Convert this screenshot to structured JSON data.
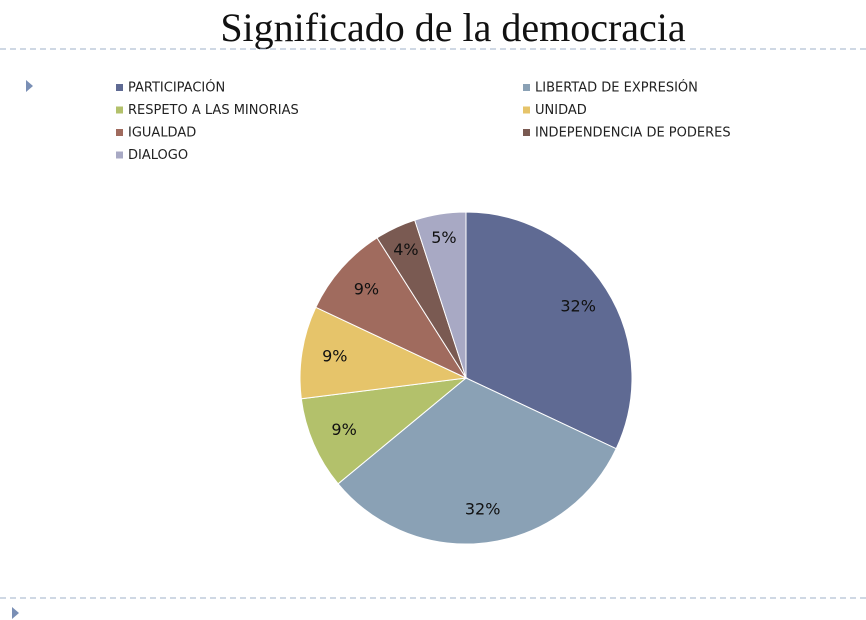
{
  "chart_data": {
    "type": "pie",
    "title": "Significado de la democracia",
    "categories": [
      "PARTICIPACIÓN",
      "LIBERTAD DE EXPRESIÓN",
      "RESPETO A LAS MINORIAS",
      "UNIDAD",
      "IGUALDAD",
      "INDEPENDENCIA DE PODERES",
      "DIALOGO"
    ],
    "values": [
      32,
      32,
      9,
      9,
      9,
      4,
      5
    ],
    "value_labels": [
      "32%",
      "32%",
      "9%",
      "9%",
      "9%",
      "4%",
      "5%"
    ],
    "colors": [
      "#5f6a93",
      "#8aa1b5",
      "#b3c16b",
      "#e6c46a",
      "#a06b5e",
      "#7a5a52",
      "#a8a9c4"
    ],
    "legend": "top"
  }
}
